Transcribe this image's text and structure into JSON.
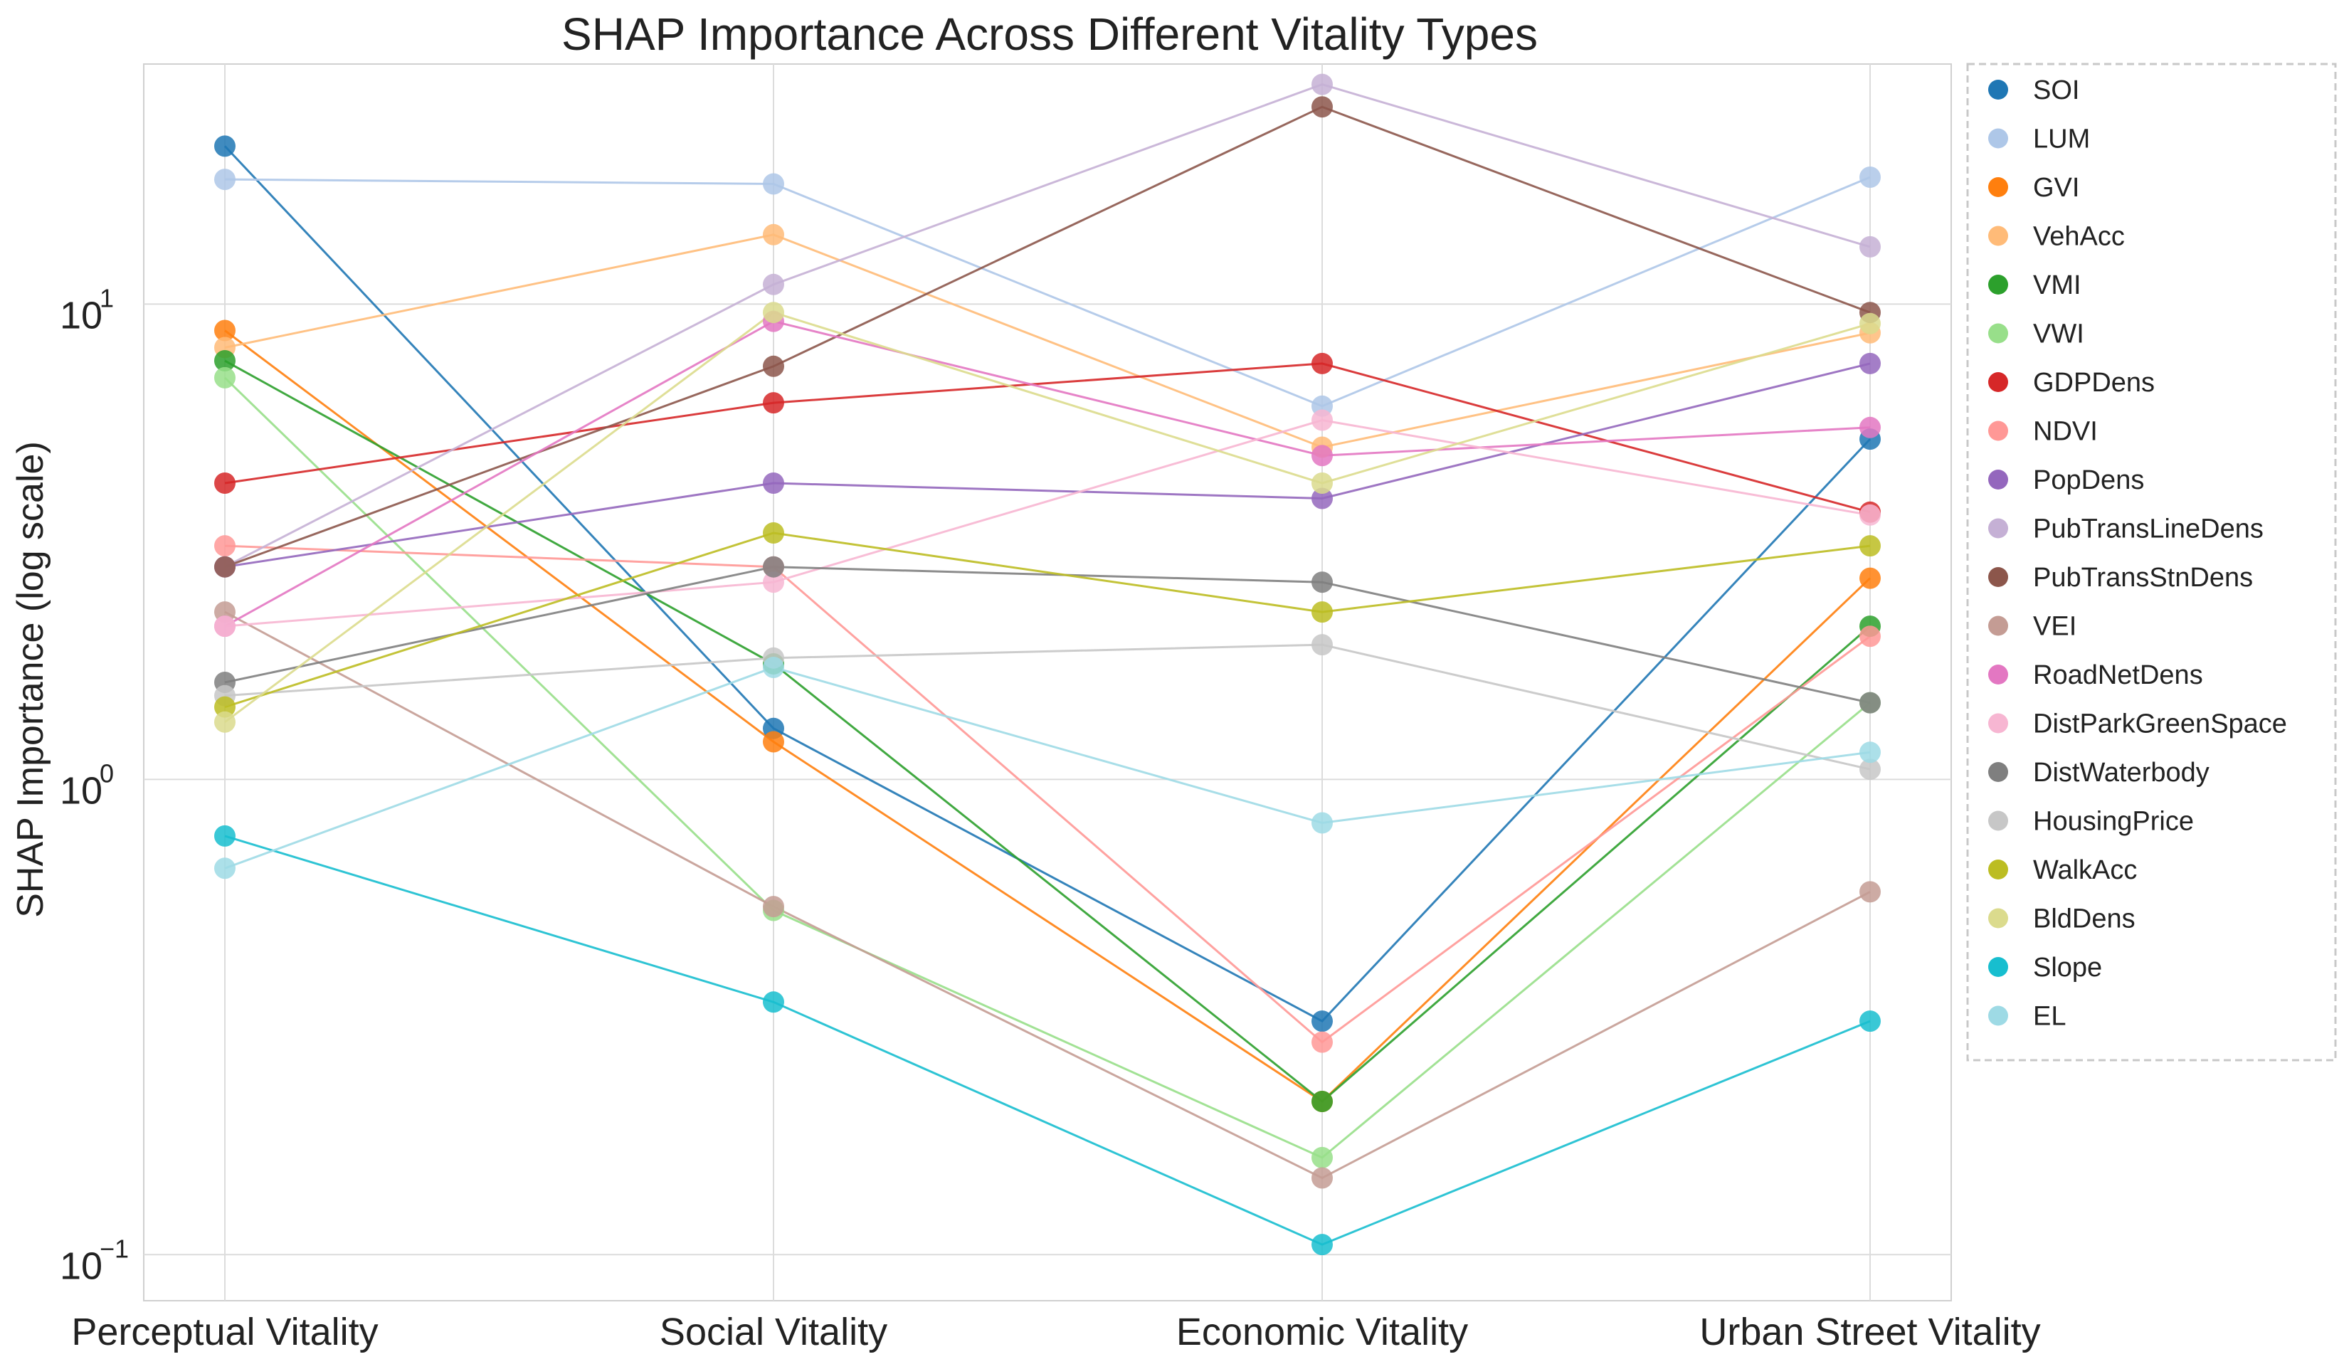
{
  "chart_data": {
    "type": "line",
    "title": "SHAP Importance Across Different Vitality Types",
    "xlabel": "",
    "ylabel": "SHAP Importance (log scale)",
    "yscale": "log",
    "ylim": [
      0.08,
      32
    ],
    "yticks": [
      {
        "value": 0.1,
        "base": "10",
        "exp": "−1"
      },
      {
        "value": 1,
        "base": "10",
        "exp": "0"
      },
      {
        "value": 10,
        "base": "10",
        "exp": "1"
      }
    ],
    "categories": [
      "Perceptual Vitality",
      "Social Vitality",
      "Economic Vitality",
      "Urban Street Vitality"
    ],
    "legend_position": "outside-right",
    "grid": true,
    "series": [
      {
        "name": "SOI",
        "color": "#1f77b4",
        "values": [
          21.5,
          1.28,
          0.31,
          5.2
        ]
      },
      {
        "name": "LUM",
        "color": "#aec7e8",
        "values": [
          18.3,
          17.9,
          6.1,
          18.5
        ]
      },
      {
        "name": "GVI",
        "color": "#ff7f0e",
        "values": [
          8.8,
          1.2,
          0.21,
          2.65
        ]
      },
      {
        "name": "VehAcc",
        "color": "#ffbb78",
        "values": [
          8.1,
          14.0,
          5.0,
          8.7
        ]
      },
      {
        "name": "VMI",
        "color": "#2ca02c",
        "values": [
          7.6,
          1.75,
          0.21,
          2.1
        ]
      },
      {
        "name": "VWI",
        "color": "#98df8a",
        "values": [
          7.0,
          0.53,
          0.16,
          1.45
        ]
      },
      {
        "name": "GDPDens",
        "color": "#d62728",
        "values": [
          4.2,
          6.2,
          7.5,
          3.65
        ]
      },
      {
        "name": "NDVI",
        "color": "#ff9896",
        "values": [
          3.1,
          2.8,
          0.28,
          2.0
        ]
      },
      {
        "name": "PopDens",
        "color": "#9467bd",
        "values": [
          2.8,
          4.2,
          3.9,
          7.5
        ]
      },
      {
        "name": "PubTransLineDens",
        "color": "#c5b0d5",
        "values": [
          2.8,
          11.0,
          29.0,
          13.2
        ]
      },
      {
        "name": "PubTransStnDens",
        "color": "#8c564b",
        "values": [
          2.8,
          7.4,
          26.0,
          9.6
        ]
      },
      {
        "name": "VEI",
        "color": "#c49c94",
        "values": [
          2.25,
          0.54,
          0.145,
          0.58
        ]
      },
      {
        "name": "RoadNetDens",
        "color": "#e377c2",
        "values": [
          2.1,
          9.2,
          4.8,
          5.5
        ]
      },
      {
        "name": "DistParkGreenSpace",
        "color": "#f7b6d2",
        "values": [
          2.1,
          2.6,
          5.7,
          3.6
        ]
      },
      {
        "name": "DistWaterbody",
        "color": "#7f7f7f",
        "values": [
          1.6,
          2.8,
          2.6,
          1.45
        ]
      },
      {
        "name": "HousingPrice",
        "color": "#c7c7c7",
        "values": [
          1.5,
          1.8,
          1.92,
          1.05
        ]
      },
      {
        "name": "WalkAcc",
        "color": "#bcbd22",
        "values": [
          1.42,
          3.3,
          2.25,
          3.1
        ]
      },
      {
        "name": "BldDens",
        "color": "#dbdb8d",
        "values": [
          1.32,
          9.6,
          4.2,
          9.1
        ]
      },
      {
        "name": "Slope",
        "color": "#17becf",
        "values": [
          0.76,
          0.34,
          0.105,
          0.31
        ]
      },
      {
        "name": "EL",
        "color": "#9edae5",
        "values": [
          0.65,
          1.72,
          0.81,
          1.14
        ]
      }
    ]
  }
}
